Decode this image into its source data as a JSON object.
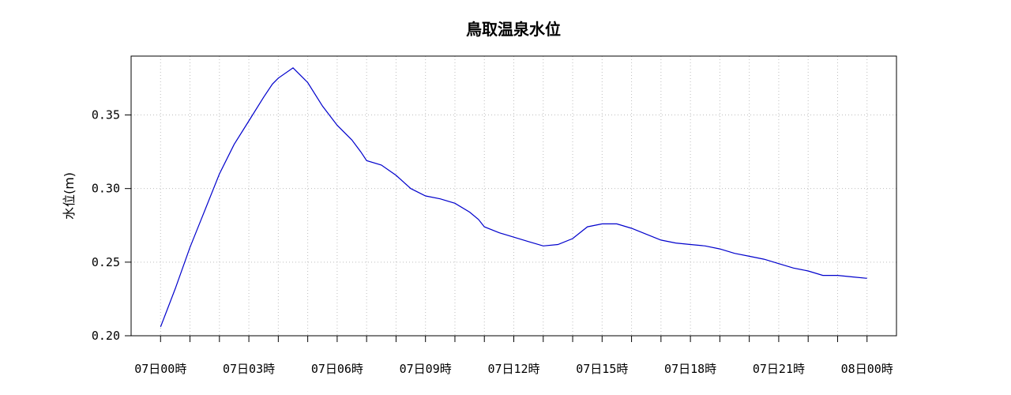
{
  "chart_data": {
    "type": "line",
    "title": "鳥取温泉水位",
    "ylabel": "水位(m)",
    "xlabel": "",
    "ylim": [
      0.2,
      0.39
    ],
    "xlim": [
      -1,
      25
    ],
    "yticks": [
      0.2,
      0.25,
      0.3,
      0.35
    ],
    "ytick_labels": [
      "0.20",
      "0.25",
      "0.30",
      "0.35"
    ],
    "xticks": [
      0,
      3,
      6,
      9,
      12,
      15,
      18,
      21,
      24
    ],
    "xtick_labels": [
      "07日00時",
      "07日03時",
      "07日06時",
      "07日09時",
      "07日12時",
      "07日15時",
      "07日18時",
      "07日21時",
      "08日00時"
    ],
    "minor_xticks": [
      1,
      2,
      4,
      5,
      7,
      8,
      10,
      11,
      13,
      14,
      16,
      17,
      19,
      20,
      22,
      23
    ],
    "grid": true,
    "line_color": "#0000cc",
    "series": [
      {
        "x": [
          0,
          0.25,
          0.5,
          1,
          1.5,
          2,
          2.5,
          3,
          3.5,
          3.8,
          4,
          4.5,
          5,
          5.5,
          6,
          6.5,
          6.8,
          7,
          7.5,
          8,
          8.5,
          9,
          9.5,
          10,
          10.5,
          10.8,
          11,
          11.5,
          12,
          12.5,
          13,
          13.5,
          14,
          14.5,
          15,
          15.5,
          16,
          16.5,
          17,
          17.5,
          18,
          18.5,
          19,
          19.5,
          20,
          20.5,
          21,
          21.5,
          22,
          22.5,
          23,
          23.5,
          24
        ],
        "y": [
          0.206,
          0.219,
          0.232,
          0.26,
          0.285,
          0.31,
          0.33,
          0.346,
          0.362,
          0.371,
          0.375,
          0.382,
          0.372,
          0.356,
          0.343,
          0.333,
          0.325,
          0.319,
          0.316,
          0.309,
          0.3,
          0.295,
          0.293,
          0.29,
          0.284,
          0.279,
          0.274,
          0.27,
          0.267,
          0.264,
          0.261,
          0.262,
          0.266,
          0.274,
          0.276,
          0.276,
          0.273,
          0.269,
          0.265,
          0.263,
          0.262,
          0.261,
          0.259,
          0.256,
          0.254,
          0.252,
          0.249,
          0.246,
          0.244,
          0.241,
          0.241,
          0.24,
          0.239
        ]
      }
    ]
  }
}
